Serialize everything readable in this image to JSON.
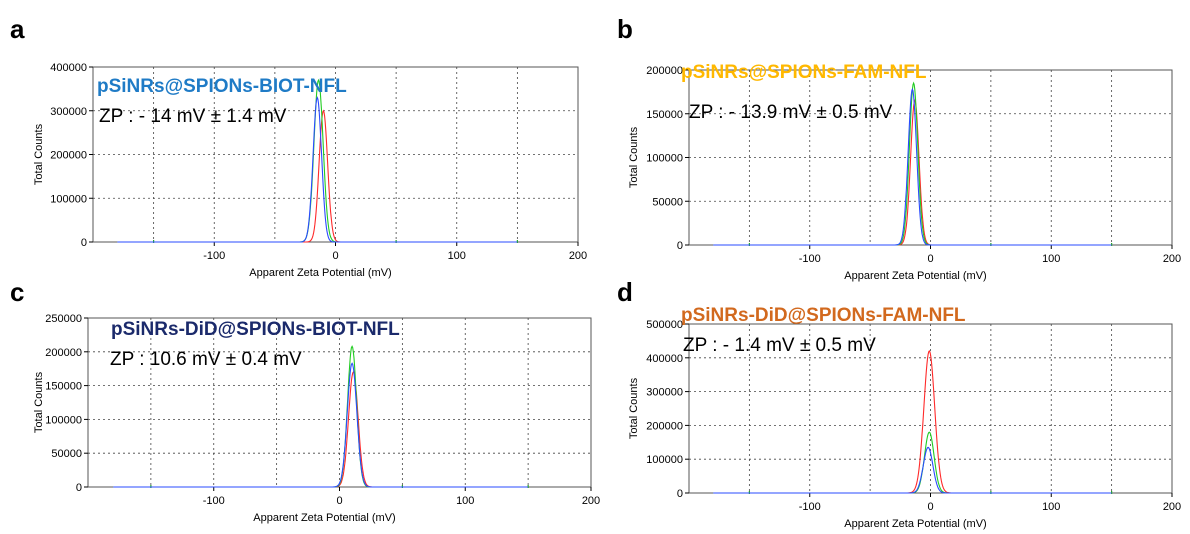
{
  "chart_data": [
    {
      "panel_label": "a",
      "type": "line",
      "title": "pSiNRs@SPIONs-BIOT-NFL",
      "title_color": "#1f7bc6",
      "annotation": "ZP : - 14 mV ± 1.4 mV",
      "xlabel": "Apparent Zeta Potential (mV)",
      "ylabel": "Total Counts",
      "xlim": [
        -200,
        200
      ],
      "ylim": [
        0,
        400000
      ],
      "xticks": [
        "-100",
        "0",
        "100",
        "200"
      ],
      "yticks": [
        "0",
        "100000",
        "200000",
        "300000",
        "400000"
      ],
      "grid": true,
      "series": [
        {
          "color": "#ff2a2a",
          "peak_x": -10,
          "peak_y": 300000,
          "width": 3.5
        },
        {
          "color": "#22cc22",
          "peak_x": -14,
          "peak_y": 370000,
          "width": 3.8
        },
        {
          "color": "#2a4bff",
          "peak_x": -15,
          "peak_y": 330000,
          "width": 3.5
        }
      ]
    },
    {
      "panel_label": "b",
      "type": "line",
      "title": "pSiNRs@SPIONs-FAM-NFL",
      "title_color": "#ffb800",
      "annotation": "ZP : - 13.9 mV ± 0.5 mV",
      "xlabel": "Apparent Zeta Potential (mV)",
      "ylabel": "Total Counts",
      "xlim": [
        -200,
        200
      ],
      "ylim": [
        0,
        200000
      ],
      "xticks": [
        "-100",
        "0",
        "100",
        "200"
      ],
      "yticks": [
        "0",
        "50000",
        "100000",
        "150000",
        "200000"
      ],
      "grid": true,
      "series": [
        {
          "color": "#ff2a2a",
          "peak_x": -13,
          "peak_y": 165000,
          "width": 3.5
        },
        {
          "color": "#22cc22",
          "peak_x": -14,
          "peak_y": 185000,
          "width": 3.5
        },
        {
          "color": "#2a4bff",
          "peak_x": -15,
          "peak_y": 178000,
          "width": 3.5
        }
      ]
    },
    {
      "panel_label": "c",
      "type": "line",
      "title": "pSiNRs-DiD@SPIONs-BIOT-NFL",
      "title_color": "#1b2a6b",
      "annotation": "ZP : 10.6 mV ± 0.4 mV",
      "xlabel": "Apparent Zeta Potential (mV)",
      "ylabel": "Total Counts",
      "xlim": [
        -200,
        200
      ],
      "ylim": [
        0,
        250000
      ],
      "xticks": [
        "-100",
        "0",
        "100",
        "200"
      ],
      "yticks": [
        "0",
        "50000",
        "100000",
        "150000",
        "200000",
        "250000"
      ],
      "grid": true,
      "series": [
        {
          "color": "#ff2a2a",
          "peak_x": 11,
          "peak_y": 170000,
          "width": 3.8
        },
        {
          "color": "#22cc22",
          "peak_x": 10,
          "peak_y": 208000,
          "width": 3.6
        },
        {
          "color": "#2a4bff",
          "peak_x": 10,
          "peak_y": 183000,
          "width": 3.8
        }
      ]
    },
    {
      "panel_label": "d",
      "type": "line",
      "title": "pSiNRs-DiD@SPIONs-FAM-NFL",
      "title_color": "#d2691e",
      "annotation": "ZP : - 1.4 mV ± 0.5 mV",
      "xlabel": "Apparent Zeta Potential (mV)",
      "ylabel": "Total Counts",
      "xlim": [
        -200,
        200
      ],
      "ylim": [
        0,
        500000
      ],
      "xticks": [
        "-100",
        "0",
        "100",
        "200"
      ],
      "yticks": [
        "0",
        "100000",
        "200000",
        "300000",
        "400000",
        "500000"
      ],
      "grid": true,
      "series": [
        {
          "color": "#ff2a2a",
          "peak_x": -1,
          "peak_y": 420000,
          "width": 4.5
        },
        {
          "color": "#22cc22",
          "peak_x": -1,
          "peak_y": 180000,
          "width": 4.0
        },
        {
          "color": "#2a4bff",
          "peak_x": -2,
          "peak_y": 135000,
          "width": 4.0
        }
      ]
    }
  ]
}
